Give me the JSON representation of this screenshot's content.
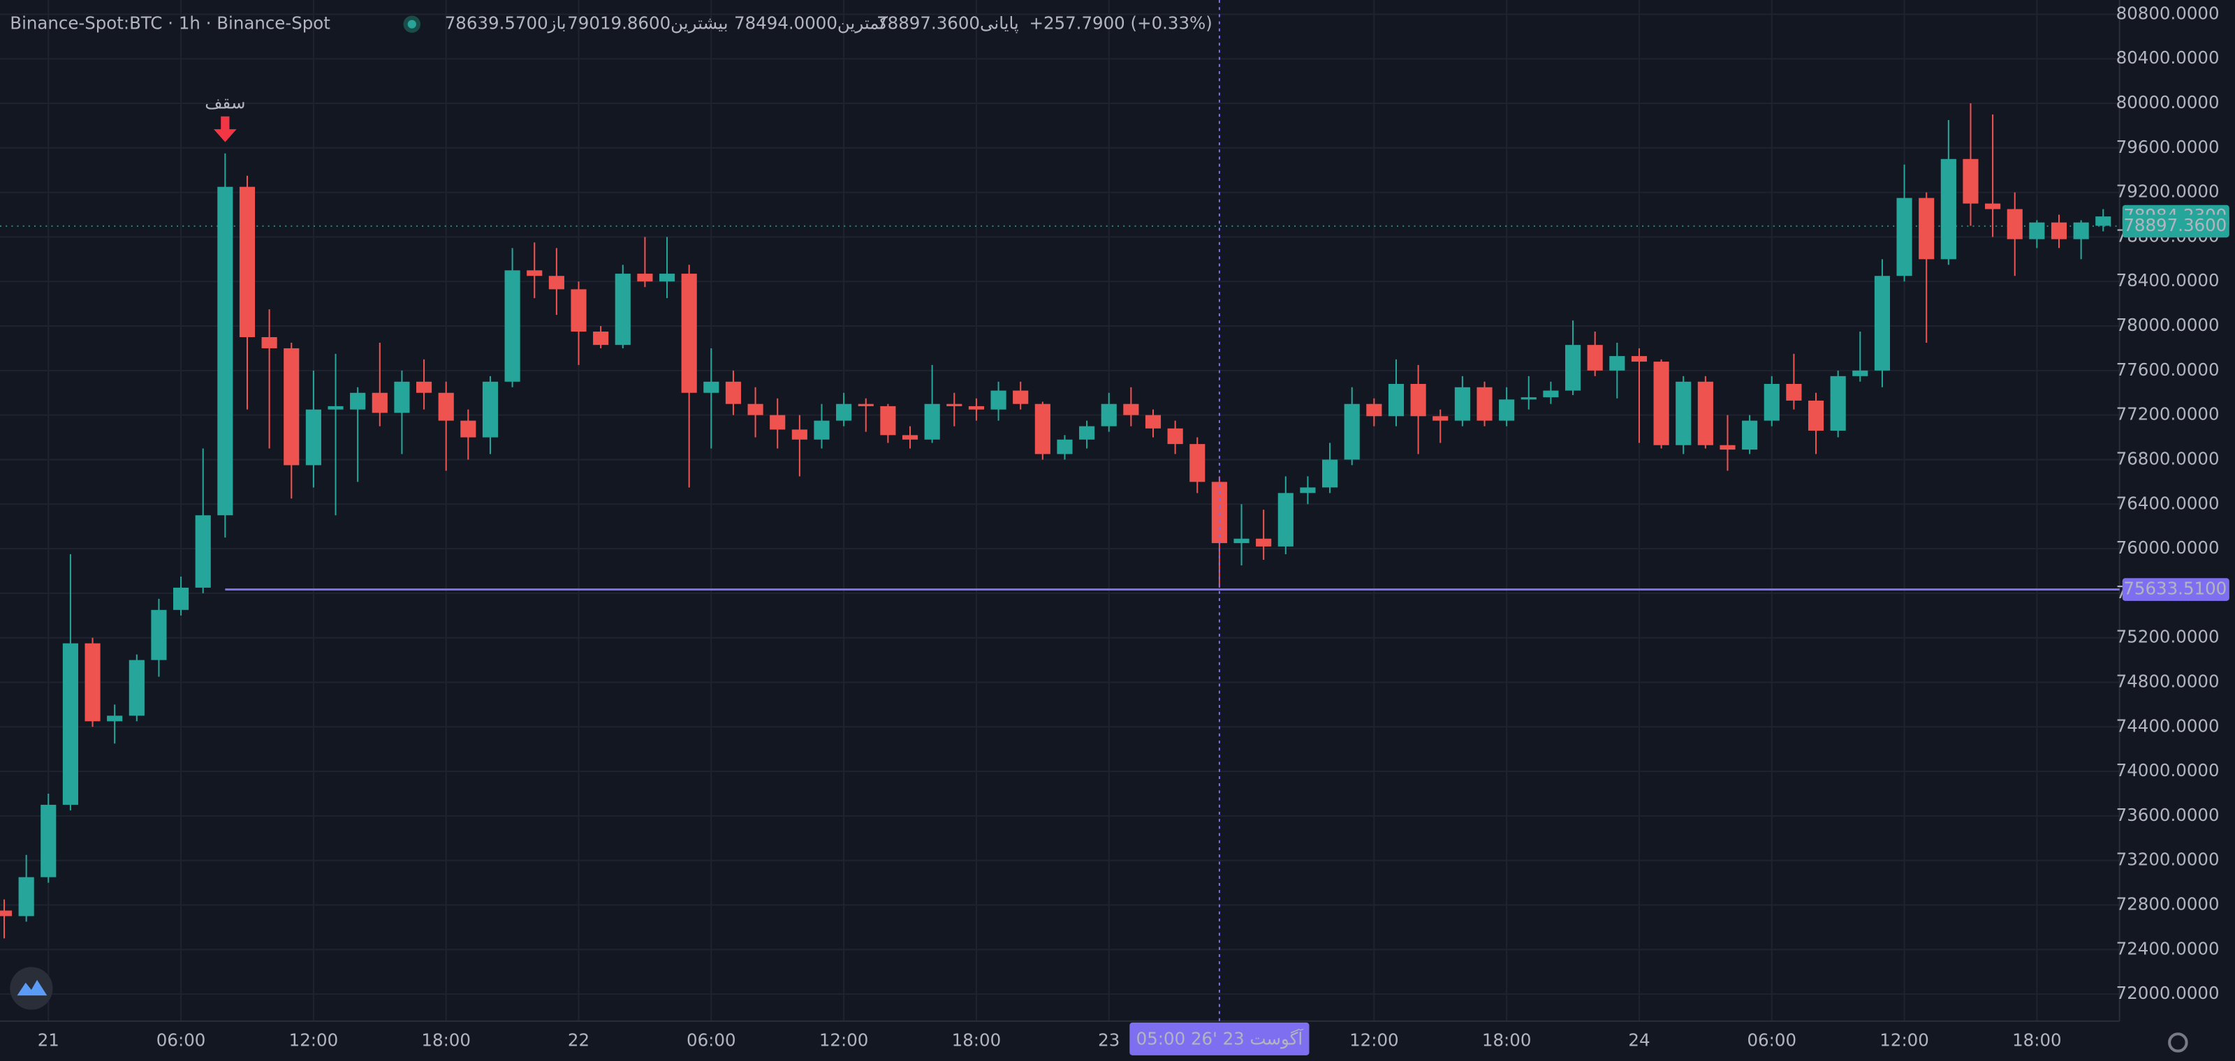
{
  "chart_data": {
    "type": "candlestick",
    "title": "Binance-Spot:BTC · 1h · Binance-Spot",
    "ohlc_labels": [
      "باز78639.5700",
      "بیشترین79019.8600",
      "کمترین78494.0000",
      "پایانی78897.3600"
    ],
    "change": "+257.7900 (+0.33%)",
    "up_color": "#26a69a",
    "down_color": "#ef5350",
    "x": [
      -2,
      -1,
      0,
      1,
      2,
      3,
      4,
      5,
      6,
      7,
      8,
      9,
      10,
      11,
      12,
      13,
      14,
      15,
      16,
      17,
      18,
      19,
      20,
      21,
      22,
      23,
      24,
      25,
      26,
      27,
      28,
      29,
      30,
      31,
      32,
      33,
      34,
      35,
      36,
      37,
      38,
      39,
      40,
      41,
      42,
      43,
      44,
      45,
      46,
      47,
      48,
      49,
      50,
      51,
      52,
      53,
      54,
      55,
      56,
      57,
      58,
      59,
      60,
      61,
      62,
      63,
      64,
      65,
      66,
      67,
      68,
      69,
      70,
      71,
      72,
      73,
      74,
      75,
      76,
      77,
      78,
      79,
      80,
      81,
      82,
      83,
      84,
      85,
      86,
      87,
      88,
      89,
      90,
      91,
      92,
      93
    ],
    "open": [
      72750,
      72700,
      73050,
      73700,
      75150,
      74450,
      74500,
      75000,
      75450,
      75650,
      76300,
      79250,
      77900,
      77800,
      76750,
      77250,
      77250,
      77400,
      77220,
      77500,
      77400,
      77150,
      77000,
      77500,
      78500,
      78450,
      78330,
      77950,
      77830,
      78470,
      78400,
      78470,
      77400,
      77500,
      77300,
      77200,
      77070,
      76980,
      77150,
      77300,
      77280,
      77020,
      76980,
      77300,
      77280,
      77250,
      77420,
      77300,
      76850,
      76980,
      77100,
      77300,
      77200,
      77080,
      76940,
      76600,
      76050,
      76090,
      76020,
      76500,
      76550,
      76800,
      77300,
      77190,
      77480,
      77190,
      77150,
      77450,
      77150,
      77340,
      77360,
      77420,
      77830,
      77600,
      77730,
      77680,
      76930,
      77500,
      76930,
      76890,
      77150,
      77480,
      77330,
      77060,
      77550,
      77600,
      78450,
      79150,
      78600,
      79500,
      79100,
      79050,
      78780,
      78930,
      78780,
      78900
    ],
    "high": [
      72850,
      73250,
      73800,
      75950,
      75200,
      74600,
      75050,
      75550,
      75750,
      76900,
      79550,
      79350,
      78150,
      77850,
      77600,
      77750,
      77450,
      77850,
      77600,
      77700,
      77500,
      77250,
      77550,
      78700,
      78750,
      78700,
      78400,
      78000,
      78550,
      78800,
      78800,
      78550,
      77800,
      77600,
      77450,
      77350,
      77200,
      77300,
      77400,
      77350,
      77300,
      77100,
      77650,
      77400,
      77350,
      77500,
      77500,
      77320,
      77020,
      77150,
      77400,
      77450,
      77250,
      77150,
      77000,
      76650,
      76400,
      76350,
      76650,
      76650,
      76950,
      77450,
      77350,
      77700,
      77650,
      77250,
      77550,
      77500,
      77450,
      77550,
      77500,
      78050,
      77950,
      77850,
      77800,
      77700,
      77550,
      77550,
      77200,
      77200,
      77550,
      77750,
      77400,
      77600,
      77950,
      78600,
      79450,
      79200,
      79850,
      80000,
      79900,
      79200,
      78950,
      79000,
      78950,
      79050
    ],
    "low": [
      72500,
      72650,
      73000,
      73650,
      74400,
      74250,
      74450,
      74850,
      75400,
      75600,
      76100,
      77250,
      76900,
      76450,
      76550,
      76300,
      76600,
      77100,
      76850,
      77250,
      76700,
      76800,
      76850,
      77450,
      78250,
      78100,
      77650,
      77800,
      77800,
      78350,
      78250,
      76550,
      76900,
      77200,
      77000,
      76900,
      76650,
      76900,
      77100,
      77050,
      76950,
      76900,
      76950,
      77100,
      77150,
      77150,
      77250,
      76800,
      76800,
      76900,
      77050,
      77100,
      77000,
      76850,
      76500,
      75650,
      75850,
      75900,
      75950,
      76400,
      76500,
      76750,
      77100,
      77100,
      76850,
      76950,
      77100,
      77100,
      77100,
      77250,
      77300,
      77380,
      77550,
      77350,
      76950,
      76900,
      76850,
      76900,
      76700,
      76850,
      77100,
      77250,
      76850,
      77000,
      77500,
      77450,
      78400,
      77850,
      78550,
      78900,
      78800,
      78450,
      78700,
      78700,
      78600,
      78850
    ],
    "close": [
      72700,
      73050,
      73700,
      75150,
      74450,
      74500,
      75000,
      75450,
      75650,
      76300,
      79250,
      77900,
      77800,
      76750,
      77250,
      77280,
      77400,
      77220,
      77500,
      77400,
      77150,
      77000,
      77500,
      78500,
      78450,
      78330,
      77950,
      77830,
      78470,
      78400,
      78470,
      77400,
      77500,
      77300,
      77200,
      77070,
      76980,
      77150,
      77300,
      77280,
      77020,
      76980,
      77300,
      77280,
      77250,
      77420,
      77300,
      76850,
      76980,
      77100,
      77300,
      77200,
      77080,
      76940,
      76600,
      76050,
      76090,
      76020,
      76500,
      76550,
      76800,
      77300,
      77190,
      77480,
      77190,
      77150,
      77450,
      77150,
      77340,
      77360,
      77420,
      77830,
      77600,
      77730,
      77680,
      76930,
      77500,
      76930,
      76890,
      77150,
      77480,
      77330,
      77060,
      77550,
      77600,
      78450,
      79150,
      78600,
      79500,
      79100,
      79050,
      78780,
      78930,
      78780,
      78930,
      78984
    ],
    "xlim": [
      -2.19,
      93.74
    ],
    "ylim": [
      71757,
      80928
    ],
    "yticks": [
      {
        "value": 72000,
        "label": "72000.0000"
      },
      {
        "value": 72400,
        "label": "72400.0000"
      },
      {
        "value": 72800,
        "label": "72800.0000"
      },
      {
        "value": 73200,
        "label": "73200.0000"
      },
      {
        "value": 73600,
        "label": "73600.0000"
      },
      {
        "value": 74000,
        "label": "74000.0000"
      },
      {
        "value": 74400,
        "label": "74400.0000"
      },
      {
        "value": 74800,
        "label": "74800.0000"
      },
      {
        "value": 75200,
        "label": "75200.0000"
      },
      {
        "value": 75600,
        "label": "75600.0000"
      },
      {
        "value": 76000,
        "label": "76000.0000"
      },
      {
        "value": 76400,
        "label": "76400.0000"
      },
      {
        "value": 76800,
        "label": "76800.0000"
      },
      {
        "value": 77200,
        "label": "77200.0000"
      },
      {
        "value": 77600,
        "label": "77600.0000"
      },
      {
        "value": 78000,
        "label": "78000.0000"
      },
      {
        "value": 78400,
        "label": "78400.0000"
      },
      {
        "value": 78800,
        "label": "78800.0000"
      },
      {
        "value": 79200,
        "label": "79200.0000"
      },
      {
        "value": 79600,
        "label": "79600.0000"
      },
      {
        "value": 80000,
        "label": "80000.0000"
      },
      {
        "value": 80400,
        "label": "80400.0000"
      },
      {
        "value": 80800,
        "label": "80800.0000"
      }
    ],
    "xticks": [
      {
        "value": 0,
        "label": "21"
      },
      {
        "value": 6,
        "label": "06:00"
      },
      {
        "value": 12,
        "label": "12:00"
      },
      {
        "value": 18,
        "label": "18:00"
      },
      {
        "value": 24,
        "label": "22"
      },
      {
        "value": 30,
        "label": "06:00"
      },
      {
        "value": 36,
        "label": "12:00"
      },
      {
        "value": 42,
        "label": "18:00"
      },
      {
        "value": 48,
        "label": "23"
      },
      {
        "value": 60,
        "label": "12:00"
      },
      {
        "value": 66,
        "label": "18:00"
      },
      {
        "value": 72,
        "label": "24"
      },
      {
        "value": 78,
        "label": "06:00"
      },
      {
        "value": 84,
        "label": "12:00"
      },
      {
        "value": 90,
        "label": "18:00"
      }
    ],
    "grid": true,
    "price_labels": [
      {
        "value": 78984.23,
        "label": "78984.2300",
        "color": "#26a69a"
      },
      {
        "value": 78897.36,
        "label": "78897.3600",
        "color": "#26a69a"
      }
    ],
    "hline": {
      "value": 75633.51,
      "label": "75633.5100",
      "color": "#7e6ff0",
      "from": 8
    },
    "crosshair": {
      "value": 53,
      "label": "05:00  26' آگوست 23",
      "color": "#7e6ff0"
    },
    "annotation": {
      "text": "سقف",
      "x": 8,
      "color": "#2962ff",
      "arrow_color": "#f23645"
    }
  }
}
